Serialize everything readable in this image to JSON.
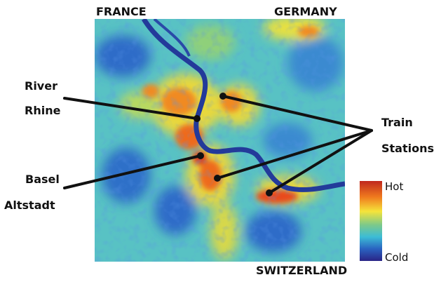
{
  "labels": {
    "top_left": "FRANCE",
    "top_right": "GERMANY",
    "bottom_right": "SWITZERLAND"
  },
  "callouts": [
    {
      "lines": [
        "River",
        "Rhine"
      ]
    },
    {
      "lines": [
        "Basel",
        "Altstadt"
      ]
    },
    {
      "lines": [
        "Train",
        "Stations"
      ]
    }
  ],
  "legend": {
    "hot": "Hot",
    "cold": "Cold"
  }
}
